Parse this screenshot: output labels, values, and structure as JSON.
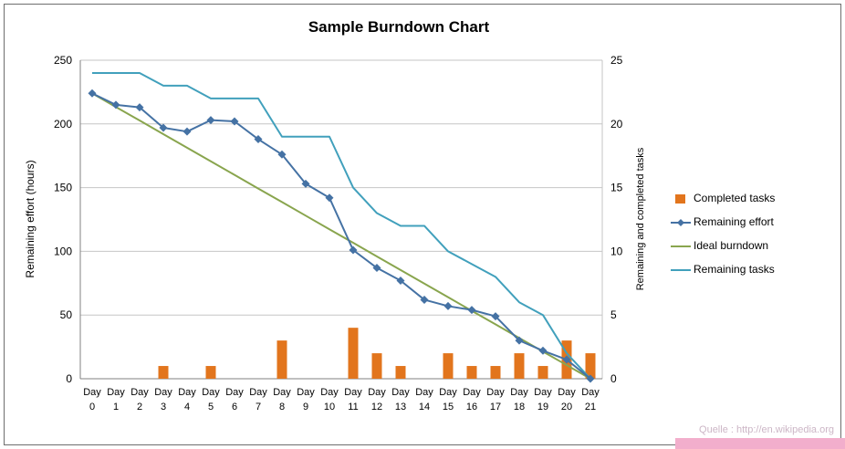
{
  "source_note": "Quelle : http://en.wikipedia.org",
  "chart_data": {
    "type": "combo",
    "title": "Sample Burndown Chart",
    "categories": [
      "Day 0",
      "Day 1",
      "Day 2",
      "Day 3",
      "Day 4",
      "Day 5",
      "Day 6",
      "Day 7",
      "Day 8",
      "Day 9",
      "Day 10",
      "Day 11",
      "Day 12",
      "Day 13",
      "Day 14",
      "Day 15",
      "Day 16",
      "Day 17",
      "Day 18",
      "Day 19",
      "Day 20",
      "Day 21"
    ],
    "left_axis": {
      "label": "Remaining effort (hours)",
      "min": 0,
      "max": 250,
      "step": 50
    },
    "right_axis": {
      "label": "Remaining and  completed tasks",
      "min": 0,
      "max": 25,
      "step": 5
    },
    "grid": true,
    "legend_position": "right",
    "series": [
      {
        "name": "Completed tasks",
        "type": "bar",
        "axis": "right",
        "color": "#e2751d",
        "values": [
          0,
          0,
          0,
          1,
          0,
          1,
          0,
          0,
          3,
          0,
          0,
          4,
          2,
          1,
          0,
          2,
          1,
          1,
          2,
          1,
          3,
          2
        ]
      },
      {
        "name": "Remaining effort",
        "type": "line",
        "marker": "diamond",
        "axis": "left",
        "color": "#4572a4",
        "values": [
          224,
          215,
          213,
          197,
          194,
          203,
          202,
          188,
          176,
          153,
          142,
          101,
          87,
          77,
          62,
          57,
          54,
          49,
          30,
          22,
          15,
          0
        ]
      },
      {
        "name": "Ideal burndown",
        "type": "line",
        "axis": "left",
        "color": "#89a54e",
        "values": [
          224,
          213.3,
          202.7,
          192,
          181.3,
          170.7,
          160,
          149.3,
          138.7,
          128,
          117.3,
          106.7,
          96,
          85.3,
          74.7,
          64,
          53.3,
          42.7,
          32,
          21.3,
          10.7,
          0
        ]
      },
      {
        "name": "Remaining tasks",
        "type": "line",
        "axis": "right",
        "color": "#41a0bc",
        "values": [
          24,
          24,
          24,
          23,
          23,
          22,
          22,
          22,
          19,
          19,
          19,
          15,
          13,
          12,
          12,
          10,
          9,
          8,
          6,
          5,
          2,
          0
        ]
      }
    ]
  }
}
